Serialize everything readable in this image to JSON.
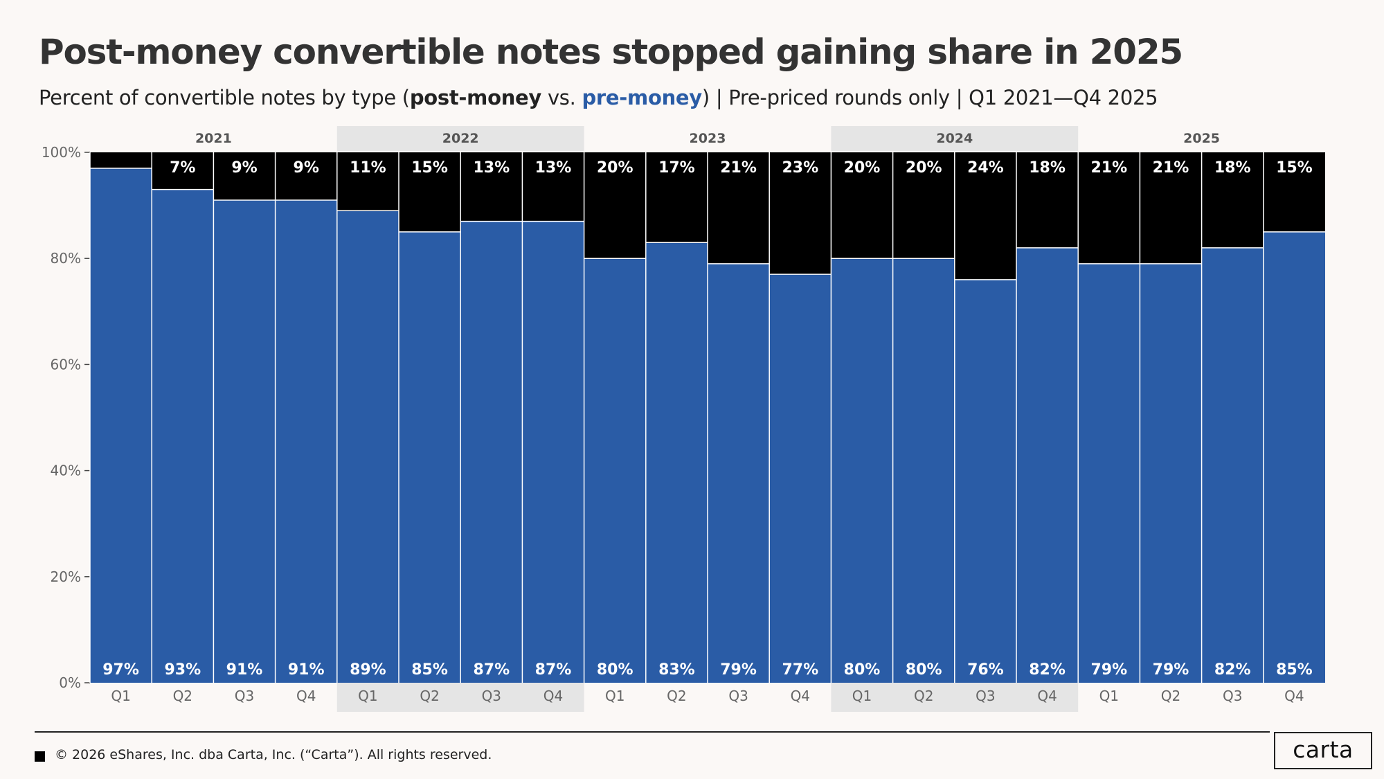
{
  "title": "Post-money convertible notes stopped gaining share in 2025",
  "subtitle": {
    "prefix": "Percent of convertible notes by type (",
    "post": "post-money",
    "vs": " vs. ",
    "pre": "pre-money",
    "suffix": ") | Pre-priced rounds only | Q1 2021—Q4 2025"
  },
  "colors": {
    "post_money": "#000000",
    "pre_money": "#2A5CA6",
    "year_band": "#E5E5E5",
    "background": "#FBF8F6"
  },
  "chart_data": {
    "type": "bar",
    "stacked": true,
    "ylim": [
      0,
      100
    ],
    "yticks": [
      "0%",
      "20%",
      "40%",
      "60%",
      "80%",
      "100%"
    ],
    "ytick_values": [
      0,
      20,
      40,
      60,
      80,
      100
    ],
    "years": [
      "2021",
      "2022",
      "2023",
      "2024",
      "2025"
    ],
    "quarters": [
      "Q1",
      "Q2",
      "Q3",
      "Q4"
    ],
    "categories": [
      "Q1",
      "Q2",
      "Q3",
      "Q4",
      "Q1",
      "Q2",
      "Q3",
      "Q4",
      "Q1",
      "Q2",
      "Q3",
      "Q4",
      "Q1",
      "Q2",
      "Q3",
      "Q4",
      "Q1",
      "Q2",
      "Q3",
      "Q4"
    ],
    "series": [
      {
        "name": "pre-money",
        "values": [
          97,
          93,
          91,
          91,
          89,
          85,
          87,
          87,
          80,
          83,
          79,
          77,
          80,
          80,
          76,
          82,
          79,
          79,
          82,
          85
        ],
        "labels": [
          "97%",
          "93%",
          "91%",
          "91%",
          "89%",
          "85%",
          "87%",
          "87%",
          "80%",
          "83%",
          "79%",
          "77%",
          "80%",
          "80%",
          "76%",
          "82%",
          "79%",
          "79%",
          "82%",
          "85%"
        ]
      },
      {
        "name": "post-money",
        "values": [
          3,
          7,
          9,
          9,
          11,
          15,
          13,
          13,
          20,
          17,
          21,
          23,
          20,
          20,
          24,
          18,
          21,
          21,
          18,
          15
        ],
        "labels": [
          "",
          "7%",
          "9%",
          "9%",
          "11%",
          "15%",
          "13%",
          "13%",
          "20%",
          "17%",
          "21%",
          "23%",
          "20%",
          "20%",
          "24%",
          "18%",
          "21%",
          "21%",
          "18%",
          "15%"
        ]
      }
    ]
  },
  "footer": {
    "copyright": "© 2026 eShares, Inc. dba Carta, Inc. (“Carta”). All rights reserved.",
    "logo": "carta"
  }
}
